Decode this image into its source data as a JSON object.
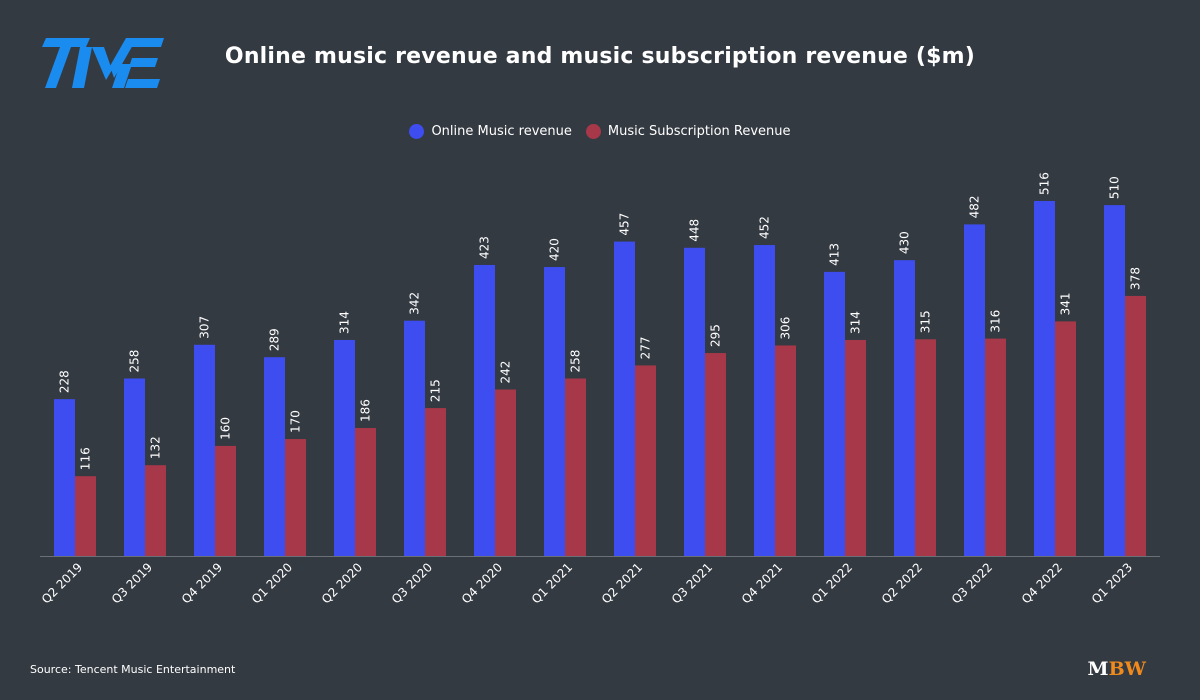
{
  "header": {
    "logo_text": "TME",
    "title": "Online music revenue and music subscription revenue ($m)"
  },
  "colors": {
    "background": "#343a42",
    "online": "#3d4df0",
    "subscription": "#a63849",
    "logo": "#1a8cf0",
    "brand_accent": "#f08a1c"
  },
  "legend": {
    "items": [
      {
        "label": "Online Music revenue",
        "color": "#3d4df0"
      },
      {
        "label": "Music Subscription Revenue",
        "color": "#a63849"
      }
    ]
  },
  "chart_data": {
    "type": "bar",
    "title": "Online music revenue and music subscription revenue ($m)",
    "xlabel": "",
    "ylabel": "",
    "ylim": [
      0,
      540
    ],
    "grid": false,
    "legend_position": "top-center",
    "categories": [
      "Q2 2019",
      "Q3 2019",
      "Q4 2019",
      "Q1 2020",
      "Q2 2020",
      "Q3 2020",
      "Q4 2020",
      "Q1 2021",
      "Q2 2021",
      "Q3 2021",
      "Q4 2021",
      "Q1 2022",
      "Q2 2022",
      "Q3 2022",
      "Q4 2022",
      "Q1 2023"
    ],
    "series": [
      {
        "name": "Online Music revenue",
        "color": "#3d4df0",
        "values": [
          228,
          258,
          307,
          289,
          314,
          342,
          423,
          420,
          457,
          448,
          452,
          413,
          430,
          482,
          516,
          510
        ]
      },
      {
        "name": "Music Subscription Revenue",
        "color": "#a63849",
        "values": [
          116,
          132,
          160,
          170,
          186,
          215,
          242,
          258,
          277,
          295,
          306,
          314,
          315,
          316,
          341,
          378
        ]
      }
    ]
  },
  "footer": {
    "source": "Source: Tencent Music Entertainment",
    "brand_m": "M",
    "brand_bw": "BW"
  }
}
